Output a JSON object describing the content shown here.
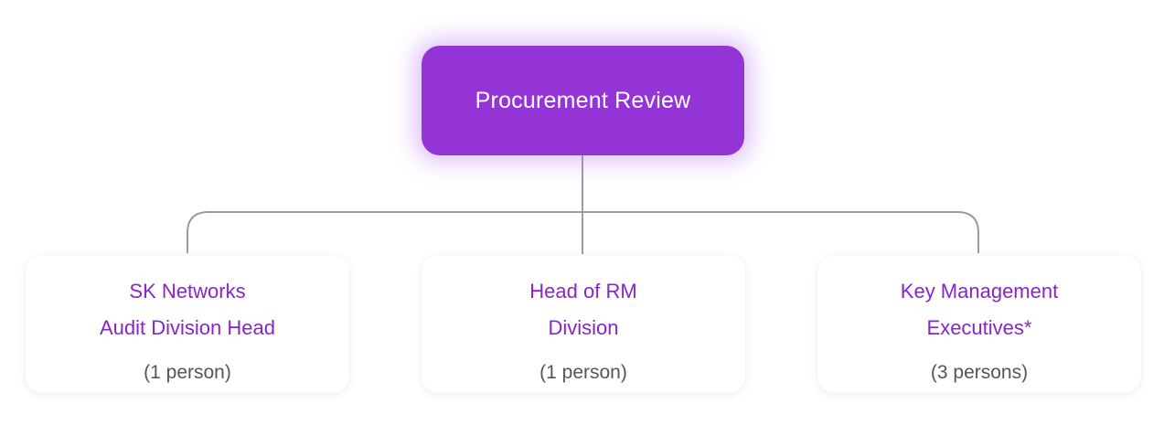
{
  "root": {
    "title": "Procurement Review"
  },
  "children": [
    {
      "title_line1": "SK Networks",
      "title_line2": "Audit Division Head",
      "count": "(1 person)"
    },
    {
      "title_line1": "Head of RM",
      "title_line2": "Division",
      "count": "(1 person)"
    },
    {
      "title_line1": "Key Management",
      "title_line2": "Executives*",
      "count": "(3 persons)"
    }
  ],
  "colors": {
    "root_fill": "#9434d6",
    "child_title_text": "#8a24c8",
    "connector": "#9a9aa6",
    "count_text": "#555555"
  }
}
